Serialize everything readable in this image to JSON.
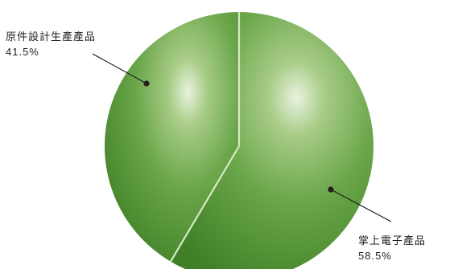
{
  "chart_data": {
    "type": "pie",
    "slices": [
      {
        "label": "掌上電子產品",
        "value": 58.5,
        "value_label": "58.5%",
        "color": "#5a9a3a"
      },
      {
        "label": "原件設計生產產品",
        "value": 41.5,
        "value_label": "41.5%",
        "color": "#4e8c30"
      }
    ],
    "start_angle_deg": 0,
    "separator_color": "#d8e8c8",
    "leader_line_color": "#231f20"
  }
}
